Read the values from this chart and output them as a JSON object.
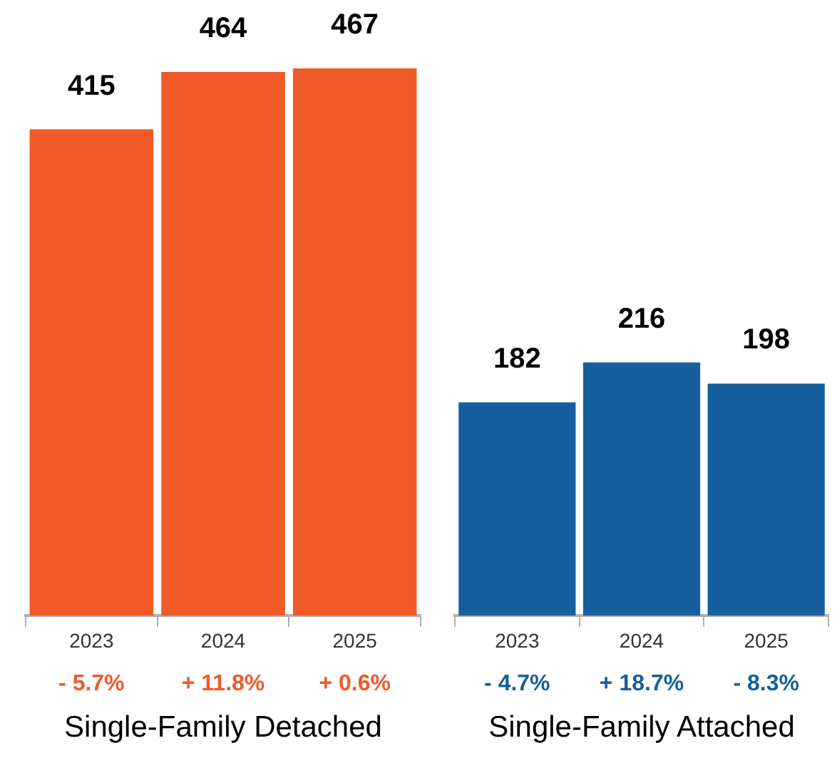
{
  "chart_data": [
    {
      "type": "bar",
      "xlabel": "Single-Family Detached",
      "categories": [
        "2023",
        "2024",
        "2025"
      ],
      "data_labels": true,
      "annotations": [
        "- 5.7%",
        "+ 11.8%",
        "+ 0.6%"
      ],
      "series": [
        {
          "color": "#f05a28",
          "values": [
            415,
            464,
            467
          ]
        }
      ]
    },
    {
      "type": "bar",
      "xlabel": "Single-Family Attached",
      "categories": [
        "2023",
        "2024",
        "2025"
      ],
      "data_labels": true,
      "annotations": [
        "- 4.7%",
        "+ 18.7%",
        "- 8.3%"
      ],
      "series": [
        {
          "color": "#155f9e",
          "values": [
            182,
            216,
            198
          ]
        }
      ]
    }
  ]
}
